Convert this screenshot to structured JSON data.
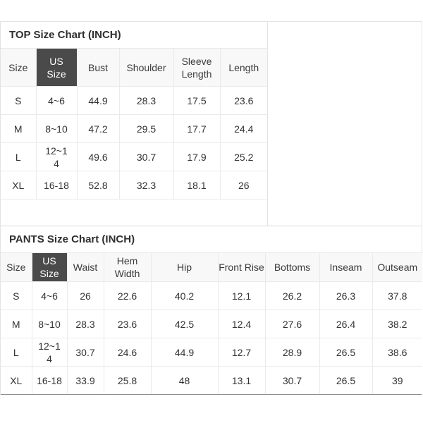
{
  "colors": {
    "us_size_cell_bg": "#4a4a4a",
    "us_size_cell_text": "#ffffff",
    "header_row_bg": "#f8f8f8",
    "cell_border": "#eaeaea",
    "panel_bottom_border": "#8f8f8f",
    "text": "#333333"
  },
  "top_chart": {
    "title": "TOP Size Chart (INCH)",
    "columns": [
      "Size",
      "US Size",
      "Bust",
      "Shoulder",
      "Sleeve Length",
      "Length"
    ],
    "rows": [
      [
        "S",
        "4~6",
        "44.9",
        "28.3",
        "17.5",
        "23.6"
      ],
      [
        "M",
        "8~10",
        "47.2",
        "29.5",
        "17.7",
        "24.4"
      ],
      [
        "L",
        "12~14",
        "49.6",
        "30.7",
        "17.9",
        "25.2"
      ],
      [
        "XL",
        "16-18",
        "52.8",
        "32.3",
        "18.1",
        "26"
      ]
    ]
  },
  "pants_chart": {
    "title": "PANTS Size Chart (INCH)",
    "columns": [
      "Size",
      "US Size",
      "Waist",
      "Hem Width",
      "Hip",
      "Front Rise",
      "Bottoms",
      "Inseam",
      "Outseam"
    ],
    "rows": [
      [
        "S",
        "4~6",
        "26",
        "22.6",
        "40.2",
        "12.1",
        "26.2",
        "26.3",
        "37.8"
      ],
      [
        "M",
        "8~10",
        "28.3",
        "23.6",
        "42.5",
        "12.4",
        "27.6",
        "26.4",
        "38.2"
      ],
      [
        "L",
        "12~14",
        "30.7",
        "24.6",
        "44.9",
        "12.7",
        "28.9",
        "26.5",
        "38.6"
      ],
      [
        "XL",
        "16-18",
        "33.9",
        "25.8",
        "48",
        "13.1",
        "30.7",
        "26.5",
        "39"
      ]
    ]
  }
}
